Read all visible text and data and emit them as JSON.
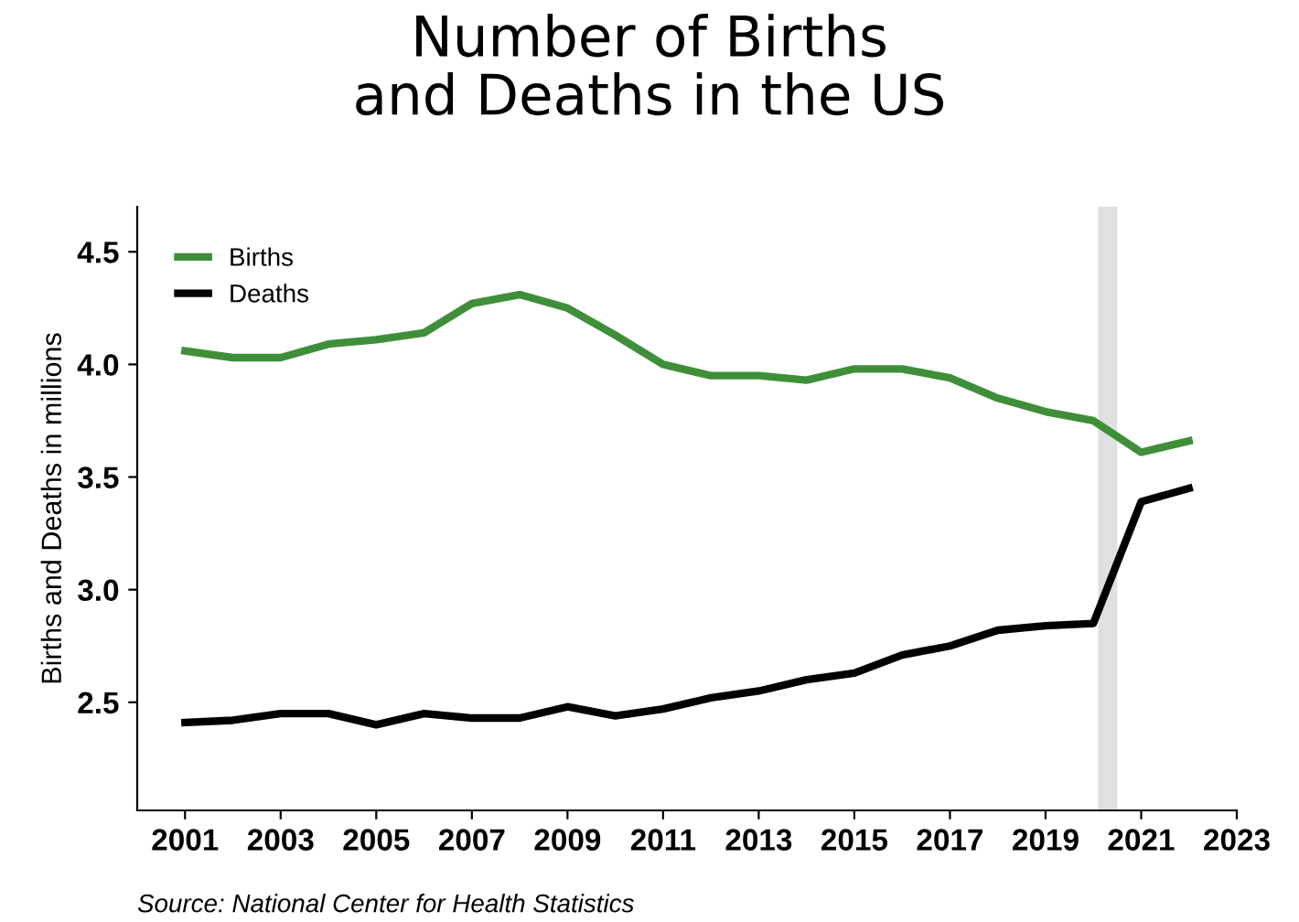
{
  "chart_data": {
    "type": "line",
    "title": "Number of Births\nand Deaths in the US",
    "ylabel": "Births and Deaths in millions",
    "x": [
      2001,
      2002,
      2003,
      2004,
      2005,
      2006,
      2007,
      2008,
      2009,
      2010,
      2011,
      2012,
      2013,
      2014,
      2015,
      2016,
      2017,
      2018,
      2019,
      2020,
      2021,
      2022
    ],
    "series": [
      {
        "name": "Births",
        "color": "#3f8f3a",
        "values": [
          4.06,
          4.03,
          4.03,
          4.09,
          4.11,
          4.14,
          4.27,
          4.31,
          4.25,
          4.13,
          4.0,
          3.95,
          3.95,
          3.93,
          3.98,
          3.98,
          3.94,
          3.85,
          3.79,
          3.75,
          3.61,
          3.66
        ]
      },
      {
        "name": "Deaths",
        "color": "#000000",
        "values": [
          2.41,
          2.42,
          2.45,
          2.45,
          2.4,
          2.45,
          2.43,
          2.43,
          2.48,
          2.44,
          2.47,
          2.52,
          2.55,
          2.6,
          2.63,
          2.71,
          2.75,
          2.82,
          2.84,
          2.85,
          3.39,
          3.45
        ]
      }
    ],
    "xlim": [
      2000,
      2023
    ],
    "xticks": [
      2001,
      2003,
      2005,
      2007,
      2009,
      2011,
      2013,
      2015,
      2017,
      2019,
      2021,
      2023
    ],
    "ylim": [
      2.02,
      4.7
    ],
    "yticks": [
      {
        "value": 2.5,
        "label": "2.5"
      },
      {
        "value": 3.0,
        "label": "3.0"
      },
      {
        "value": 3.5,
        "label": "3.5"
      },
      {
        "value": 4.0,
        "label": "4.0"
      },
      {
        "value": 4.5,
        "label": "4.5"
      }
    ],
    "bands": [
      {
        "axis": "x",
        "from": 2020.1,
        "to": 2020.5,
        "color": "#e0e0e0"
      }
    ],
    "annotations": [
      "Source: National Center for Health Statistics"
    ],
    "legend": "top left",
    "grid": false,
    "marker": "none",
    "line_style": "solid"
  }
}
